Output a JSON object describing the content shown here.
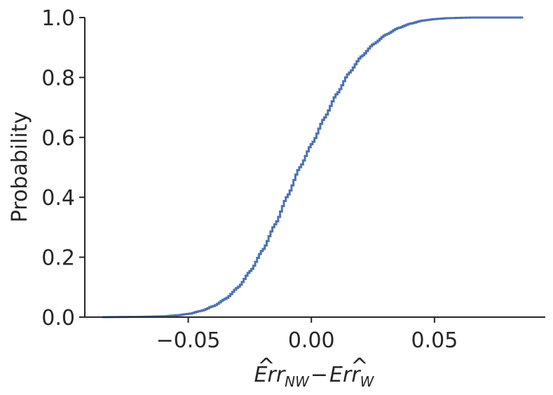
{
  "chart_data": {
    "type": "line",
    "title": "",
    "xlabel": {
      "base1": "Err",
      "sub1": "NW",
      "minus": "−",
      "base2": "Err",
      "sub2": "W",
      "hat": "^"
    },
    "ylabel": "Probability",
    "xlim": [
      -0.092,
      0.095
    ],
    "ylim": [
      0.0,
      1.0
    ],
    "xticks": [
      -0.05,
      0.0,
      0.05
    ],
    "xtick_labels": [
      "−0.05",
      "0.00",
      "0.05"
    ],
    "yticks": [
      0.0,
      0.2,
      0.4,
      0.6,
      0.8,
      1.0
    ],
    "ytick_labels": [
      "0.0",
      "0.2",
      "0.4",
      "0.6",
      "0.8",
      "1.0"
    ],
    "grid": false,
    "legend": null,
    "color": "#4c72b0",
    "series": [
      {
        "kind": "ecdf",
        "x_min": -0.085,
        "x_max": 0.086,
        "points": [
          [
            -0.085,
            0.0
          ],
          [
            -0.07,
            0.001
          ],
          [
            -0.06,
            0.003
          ],
          [
            -0.055,
            0.006
          ],
          [
            -0.05,
            0.011
          ],
          [
            -0.045,
            0.021
          ],
          [
            -0.04,
            0.037
          ],
          [
            -0.035,
            0.062
          ],
          [
            -0.03,
            0.1
          ],
          [
            -0.025,
            0.155
          ],
          [
            -0.02,
            0.225
          ],
          [
            -0.015,
            0.31
          ],
          [
            -0.01,
            0.405
          ],
          [
            -0.005,
            0.5
          ],
          [
            0.0,
            0.58
          ],
          [
            0.005,
            0.665
          ],
          [
            0.01,
            0.745
          ],
          [
            0.015,
            0.815
          ],
          [
            0.02,
            0.87
          ],
          [
            0.025,
            0.912
          ],
          [
            0.03,
            0.943
          ],
          [
            0.035,
            0.965
          ],
          [
            0.04,
            0.98
          ],
          [
            0.045,
            0.99
          ],
          [
            0.05,
            0.995
          ],
          [
            0.055,
            0.998
          ],
          [
            0.065,
            1.0
          ],
          [
            0.086,
            1.0
          ]
        ]
      }
    ]
  }
}
